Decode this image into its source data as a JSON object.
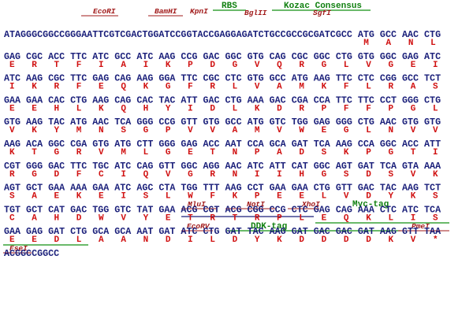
{
  "features": [
    "EcoRI",
    "BamHI",
    "KpnI",
    "RBS",
    "BglII",
    "Kozac Consensus",
    "SgfI",
    "MluI",
    "NotI",
    "XhoI",
    "Myc-tag",
    "EcoRV",
    "DDK-tag",
    "PmeI",
    "FseI"
  ],
  "lines": [
    {
      "dna": "ATAGGGCGGCCGGGAATTCGTCGACTGGATCCGGTACCGAGGAGATCTGCCGCCGCGATCGCC ATG GCC AAC CTG",
      "protein": "MANL"
    },
    {
      "dna": "GAG CGC ACC TTC ATC GCC ATC AAG CCG GAC GGC GTG CAG CGC GGC CTG GTG GGC GAG ATC",
      "protein": "ERTFIAIKPDGVQRGLVGEI"
    },
    {
      "dna": "ATC AAG CGC TTC GAG CAG AAG GGA TTC CGC CTC GTG GCC ATG AAG TTC CTC CGG GCC TCT",
      "protein": "IKRFEQKGFRLVAMKFLRAS"
    },
    {
      "dna": "GAA GAA CAC CTG AAG CAG CAC TAC ATT GAC CTG AAA GAC CGA CCA TTC TTC CCT GGG CTG",
      "protein": "EEHLKQHYIDLKDRPFFPGL"
    },
    {
      "dna": "GTG AAG TAC ATG AAC TCA GGG CCG GTT GTG GCC ATG GTC TGG GAG GGG CTG AAC GTG GTG",
      "protein": "VKYMNSGPVVAMVWEGLNVV"
    },
    {
      "dna": "AAG ACA GGC CGA GTG ATG CTT GGG GAG ACC AAT CCA GCA GAT TCA AAG CCA GGC ACC ATT",
      "protein": "KTGRVMLGETNPADSKPGTI"
    },
    {
      "dna": "CGT GGG GAC TTC TGC ATC CAG GTT GGC AGG AAC ATC ATT CAT GGC AGT GAT TCA GTA AAA",
      "protein": "RGDFCIQVGRNIIHGSDSVK"
    },
    {
      "dna": "AGT GCT GAA AAA GAA ATC AGC CTA TGG TTT AAG CCT GAA GAA CTG GTT GAC TAC AAG TCT",
      "protein": "SAEKEISLWFKPEELVDYKS"
    },
    {
      "dna": "TGT GCT CAT GAC TGG GTC TAT GAA ACG CGT ACG CGG CCG CTC GAG CAG AAA CTC ATC TCA",
      "protein": "CAHDWVYETRTRPLEQKLIS"
    },
    {
      "dna": "GAA GAG GAT CTG GCA GCA AAT GAT ATC CTG GAT TAC AAG GAT GAC GAC GAT AAG GTT TAA",
      "protein": "EEDLAANDILDYKDDDDKV*"
    },
    {
      "dna": "ACGGCCGGCC"
    }
  ]
}
